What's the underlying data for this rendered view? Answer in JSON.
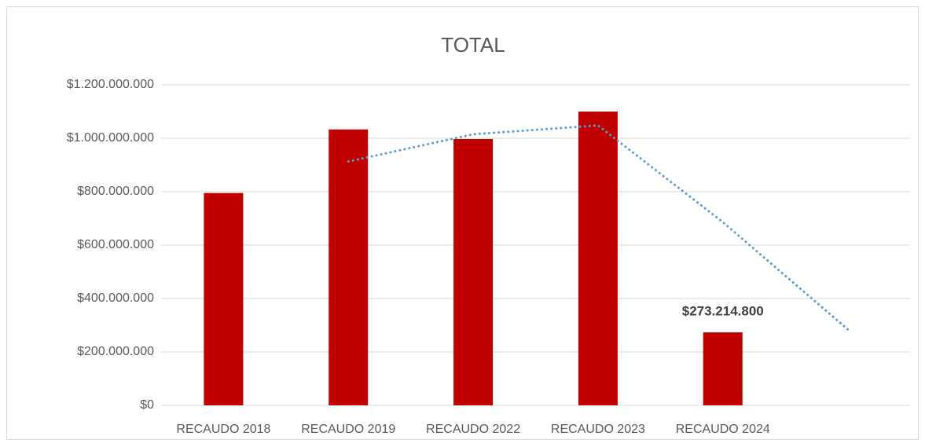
{
  "chart_data": {
    "type": "bar",
    "title": "TOTAL",
    "categories": [
      "RECAUDO 2018",
      "RECAUDO 2019",
      "RECAUDO 2022",
      "RECAUDO 2023",
      "RECAUDO 2024",
      null
    ],
    "values": [
      795000000,
      1033000000,
      997000000,
      1100000000,
      273214800,
      null
    ],
    "value_labels": [
      null,
      null,
      null,
      null,
      "$273.214.800",
      null
    ],
    "color": "#c00000",
    "trendline": {
      "color": "#5b9bd5",
      "values": [
        null,
        913000000,
        1015000000,
        1048000000,
        686000000,
        285000000
      ]
    },
    "ylim": [
      0,
      1200000000
    ],
    "yticks": [
      {
        "value": 0,
        "label": "$0"
      },
      {
        "value": 200000000,
        "label": "$200.000.000"
      },
      {
        "value": 400000000,
        "label": "$400.000.000"
      },
      {
        "value": 600000000,
        "label": "$600.000.000"
      },
      {
        "value": 800000000,
        "label": "$800.000.000"
      },
      {
        "value": 1000000000,
        "label": "$1.000.000.000"
      },
      {
        "value": 1200000000,
        "label": "$1.200.000.000"
      }
    ],
    "grid": true
  }
}
